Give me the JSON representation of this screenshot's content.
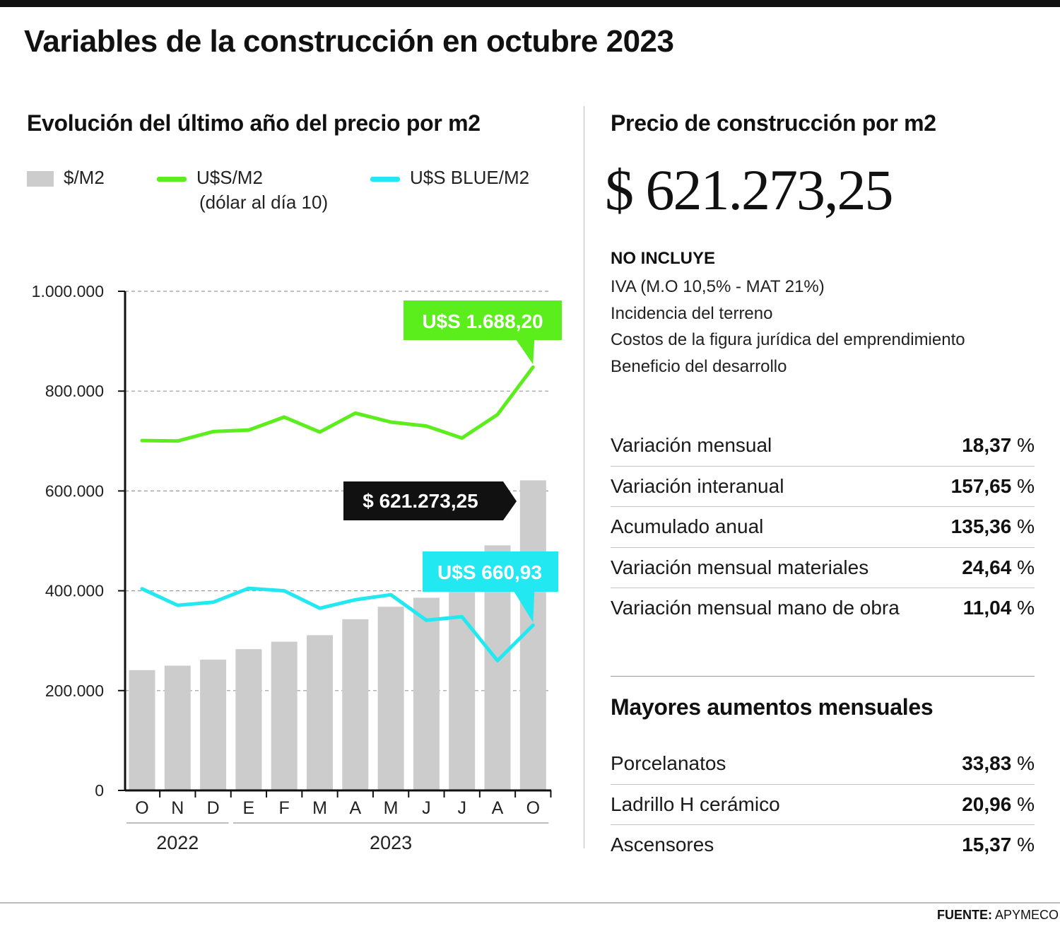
{
  "header": {
    "title": "Variables de la construcción en octubre 2023"
  },
  "chart_title": "Evolución del último año del precio por m2",
  "legend": {
    "items": [
      {
        "label": "$/M2",
        "sub": "",
        "color": "#cccccc"
      },
      {
        "label": "U$S/M2",
        "sub": "(dólar al día 10)",
        "color": "#5cee1c"
      },
      {
        "label": "U$S BLUE/M2",
        "sub": "",
        "color": "#22e8f2"
      }
    ]
  },
  "chart_data": {
    "type": "bar",
    "categories": [
      "O",
      "N",
      "D",
      "E",
      "F",
      "M",
      "A",
      "M",
      "J",
      "J",
      "A",
      "O"
    ],
    "year_groups": [
      {
        "label": "2022",
        "span": [
          0,
          2
        ]
      },
      {
        "label": "2023",
        "span": [
          3,
          11
        ]
      }
    ],
    "ylim": [
      0,
      1000000
    ],
    "yticks": [
      0,
      200000,
      400000,
      600000,
      800000,
      1000000
    ],
    "ytick_labels": [
      "0",
      "200.000",
      "400.000",
      "600.000",
      "800.000",
      "1.000.000"
    ],
    "grid": true,
    "series": [
      {
        "name": "$/M2",
        "kind": "bar",
        "color": "#cccccc",
        "values": [
          241000,
          250000,
          262000,
          283000,
          298000,
          311000,
          343000,
          368000,
          386000,
          430000,
          491000,
          621273.25
        ]
      },
      {
        "name": "U$S/M2",
        "kind": "line",
        "color": "#5cee1c",
        "values": [
          701000,
          700000,
          719000,
          722000,
          748000,
          718000,
          756000,
          738000,
          730000,
          706000,
          753000,
          848000
        ]
      },
      {
        "name": "U$S BLUE/M2",
        "kind": "line",
        "color": "#22e8f2",
        "values": [
          404000,
          371000,
          377000,
          405000,
          400000,
          365000,
          382000,
          392000,
          341000,
          348000,
          260000,
          331000
        ]
      }
    ],
    "annotations": [
      {
        "text": "U$S 1.688,20",
        "bg": "#5cee1c",
        "fg": "#ffffff",
        "index": 11,
        "series": "U$S/M2"
      },
      {
        "text": "$ 621.273,25",
        "bg": "#111111",
        "fg": "#ffffff",
        "index": 11,
        "series": "$/M2"
      },
      {
        "text": "U$S 660,93",
        "bg": "#22e8f2",
        "fg": "#ffffff",
        "index": 11,
        "series": "U$S BLUE/M2"
      }
    ]
  },
  "right": {
    "title": "Precio de construcción por m2",
    "big_price": "$ 621.273,25",
    "exclusions_title": "NO INCLUYE",
    "exclusions": [
      "IVA (M.O 10,5% - MAT 21%)",
      "Incidencia del terreno",
      "Costos de la figura jurídica del emprendimiento",
      "Beneficio del desarrollo"
    ],
    "stats": [
      {
        "label": "Variación mensual",
        "value": "18,37",
        "unit": " %"
      },
      {
        "label": "Variación interanual",
        "value": "157,65",
        "unit": " %"
      },
      {
        "label": "Acumulado anual",
        "value": "135,36",
        "unit": " %"
      },
      {
        "label": "Variación mensual materiales",
        "value": "24,64",
        "unit": " %"
      },
      {
        "label": "Variación mensual mano de obra",
        "value": "11,04",
        "unit": " %"
      }
    ],
    "mayores_title": "Mayores aumentos mensuales",
    "mayores": [
      {
        "label": "Porcelanatos",
        "value": "33,83",
        "unit": " %"
      },
      {
        "label": "Ladrillo H cerámico",
        "value": "20,96",
        "unit": " %"
      },
      {
        "label": "Ascensores",
        "value": "15,37",
        "unit": " %"
      }
    ]
  },
  "footer": {
    "source_label": "FUENTE:",
    "source_value": " APYMECO"
  }
}
